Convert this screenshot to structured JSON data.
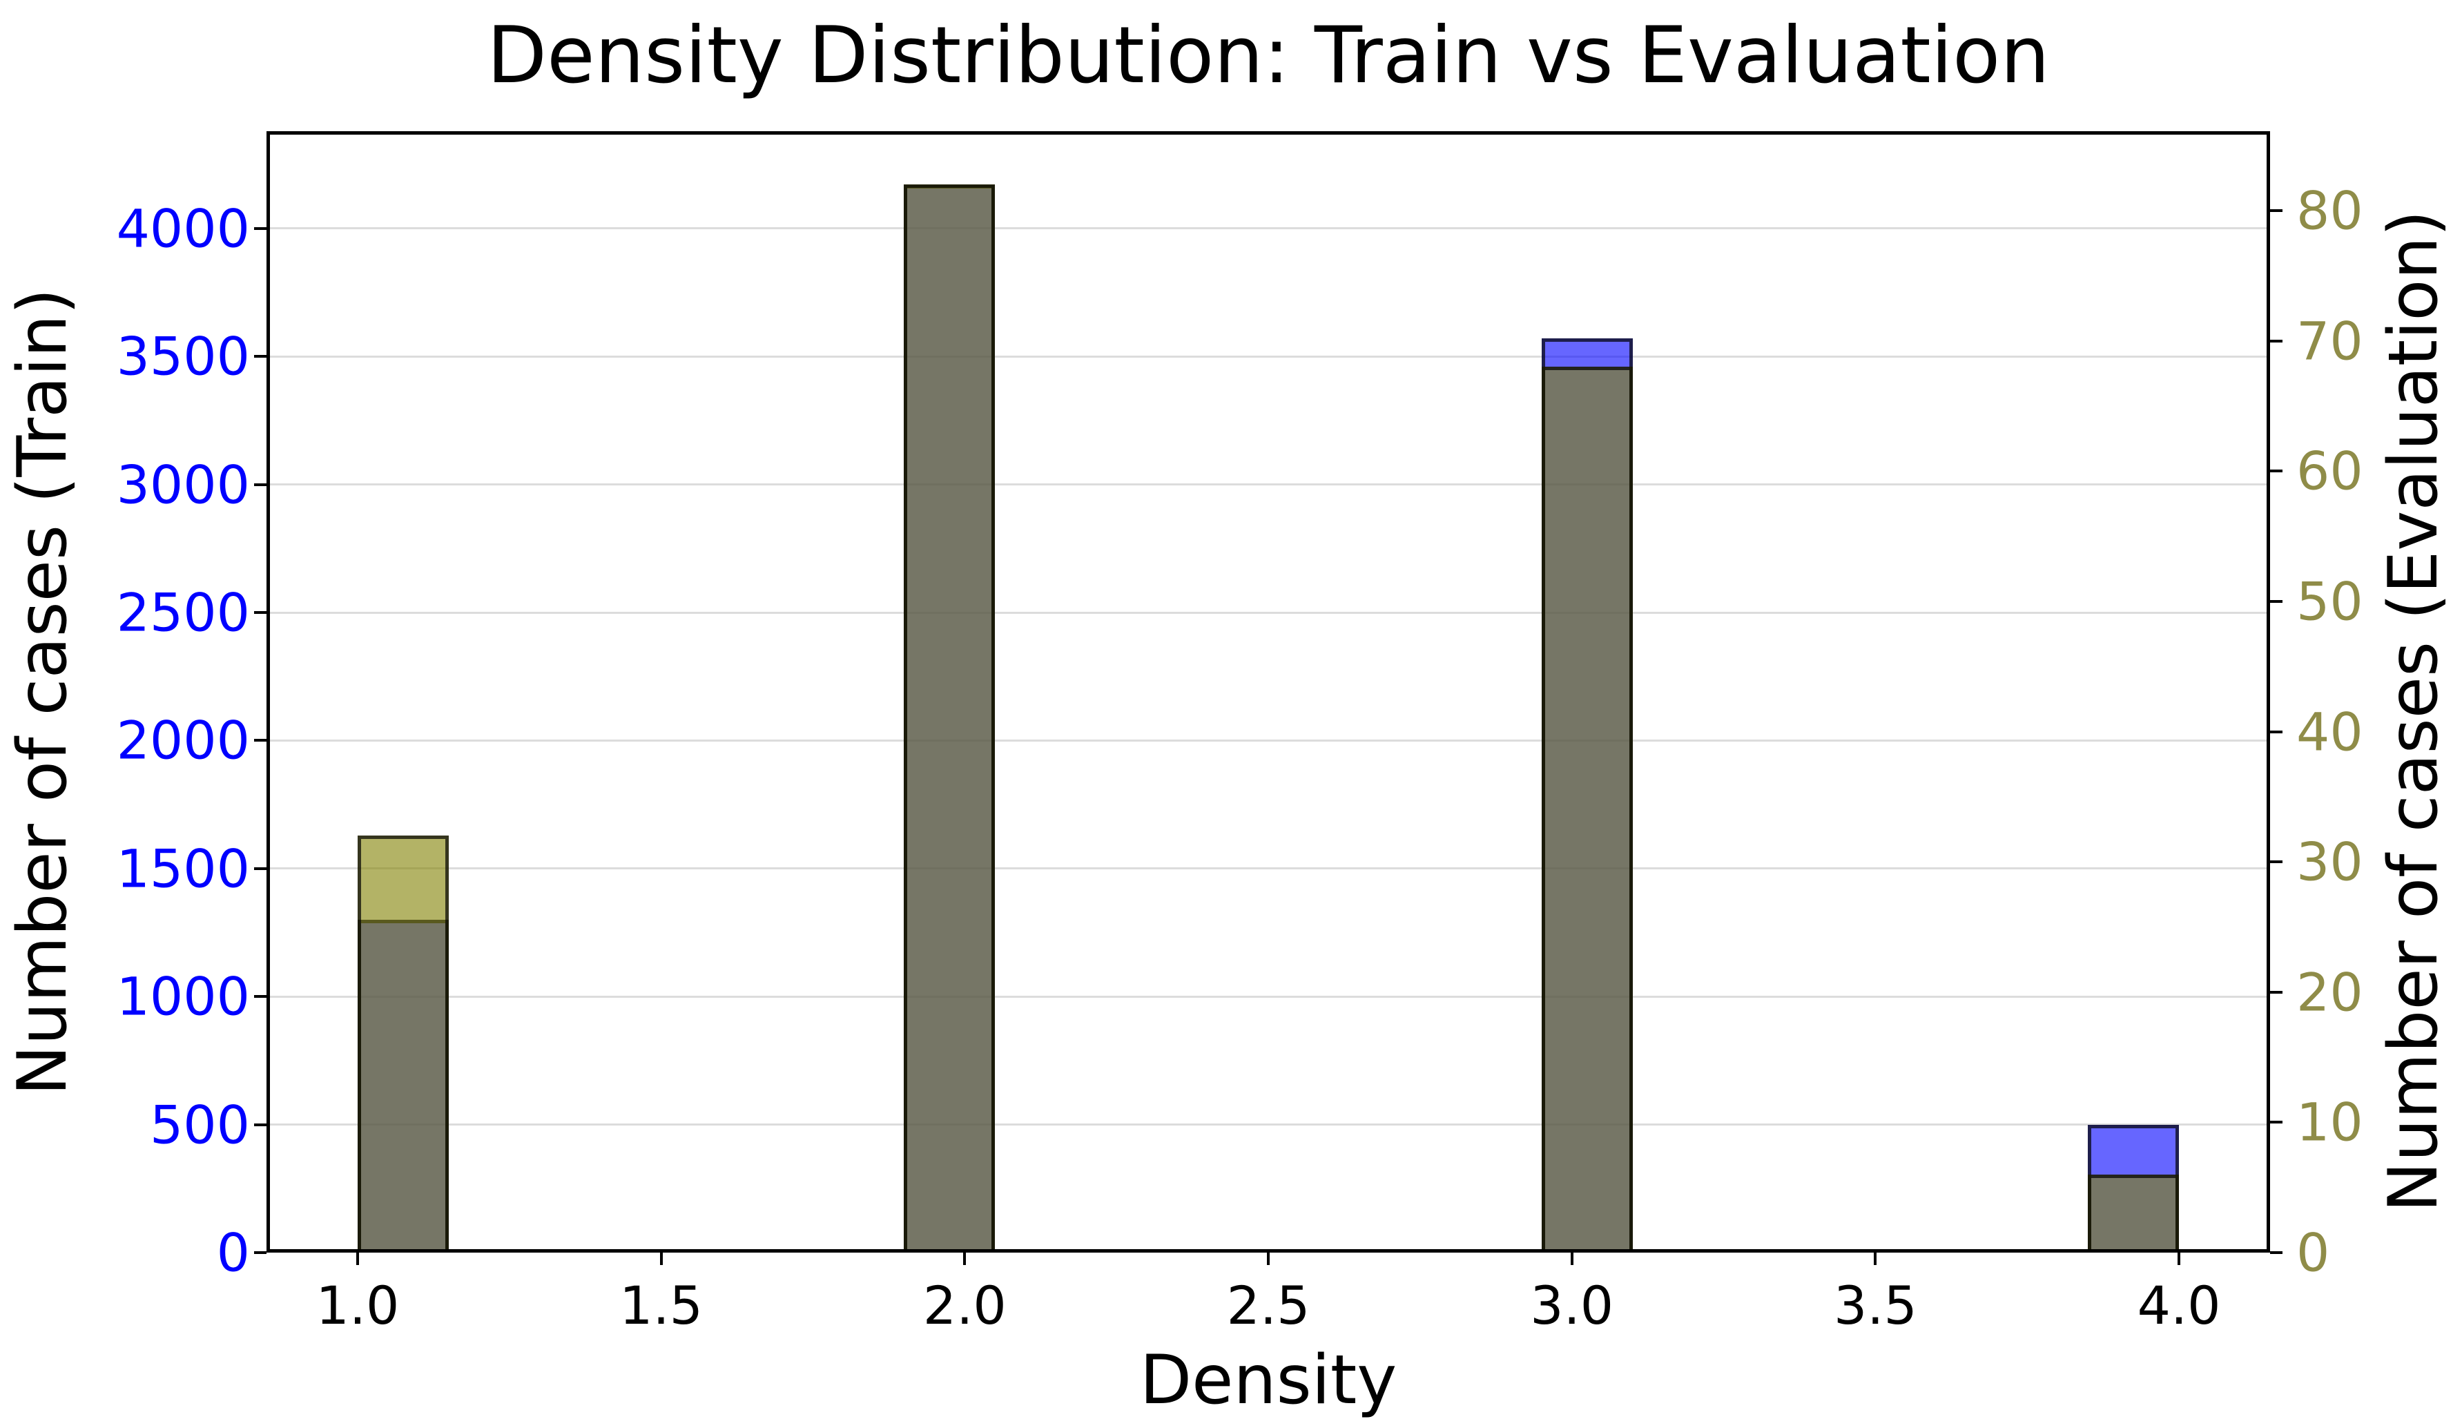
{
  "title": "Density Distribution: Train vs Evaluation",
  "axes": {
    "x": {
      "label": "Density",
      "tick_labels": [
        "1.0",
        "1.5",
        "2.0",
        "2.5",
        "3.0",
        "3.5",
        "4.0"
      ],
      "tick_values": [
        1.0,
        1.5,
        2.0,
        2.5,
        3.0,
        3.5,
        4.0
      ],
      "min": 0.85,
      "max": 4.15,
      "color": "#000000"
    },
    "y_left": {
      "label": "Number of cases (Train)",
      "tick_labels": [
        "0",
        "500",
        "1000",
        "1500",
        "2000",
        "2500",
        "3000",
        "3500",
        "4000"
      ],
      "tick_values": [
        0,
        500,
        1000,
        1500,
        2000,
        2500,
        3000,
        3500,
        4000
      ],
      "min": 0,
      "max": 4380,
      "color": "#0000ff"
    },
    "y_right": {
      "label": "Number of cases (Evaluation)",
      "tick_labels": [
        "0",
        "10",
        "20",
        "30",
        "40",
        "50",
        "60",
        "70",
        "80"
      ],
      "tick_values": [
        0,
        10,
        20,
        30,
        40,
        50,
        60,
        70,
        80
      ],
      "min": 0,
      "max": 86.1,
      "color": "#8f8c48"
    }
  },
  "chart_data": {
    "type": "bar",
    "subtype": "overlapping-histograms-twin-axes",
    "title": "Density Distribution: Train vs Evaluation",
    "xlabel": "Density",
    "ylabel_left": "Number of cases (Train)",
    "ylabel_right": "Number of cases (Evaluation)",
    "bin_width": 0.15,
    "bins": [
      {
        "x_left": 1.0,
        "x_right": 1.15,
        "category": "1.0",
        "train": 1300,
        "evaluation": 32
      },
      {
        "x_left": 1.9,
        "x_right": 2.05,
        "category": "2.0",
        "train": 4170,
        "evaluation": 82
      },
      {
        "x_left": 2.95,
        "x_right": 3.1,
        "category": "3.0",
        "train": 3570,
        "evaluation": 68
      },
      {
        "x_left": 3.85,
        "x_right": 4.0,
        "category": "4.0",
        "train": 500,
        "evaluation": 6
      }
    ],
    "categories": [
      "1.0",
      "2.0",
      "3.0",
      "4.0"
    ],
    "series": [
      {
        "name": "Train",
        "axis": "left",
        "color": "#0000ff",
        "fill_alpha": 0.6,
        "edge_color": "#000000",
        "values": [
          1300,
          4170,
          3570,
          500
        ]
      },
      {
        "name": "Evaluation",
        "axis": "right",
        "color": "#808000",
        "fill_alpha": 0.6,
        "edge_color": "#000000",
        "values": [
          32,
          82,
          68,
          6
        ]
      }
    ],
    "draw_order": [
      "Train",
      "Evaluation"
    ],
    "xlim": [
      0.85,
      4.15
    ],
    "ylim_left": [
      0,
      4380
    ],
    "ylim_right": [
      0,
      86.1
    ],
    "grid": "horizontal gridlines at left-axis ticks",
    "gridline_color": "#dcdcdc",
    "legend": "none",
    "background": "#ffffff"
  }
}
